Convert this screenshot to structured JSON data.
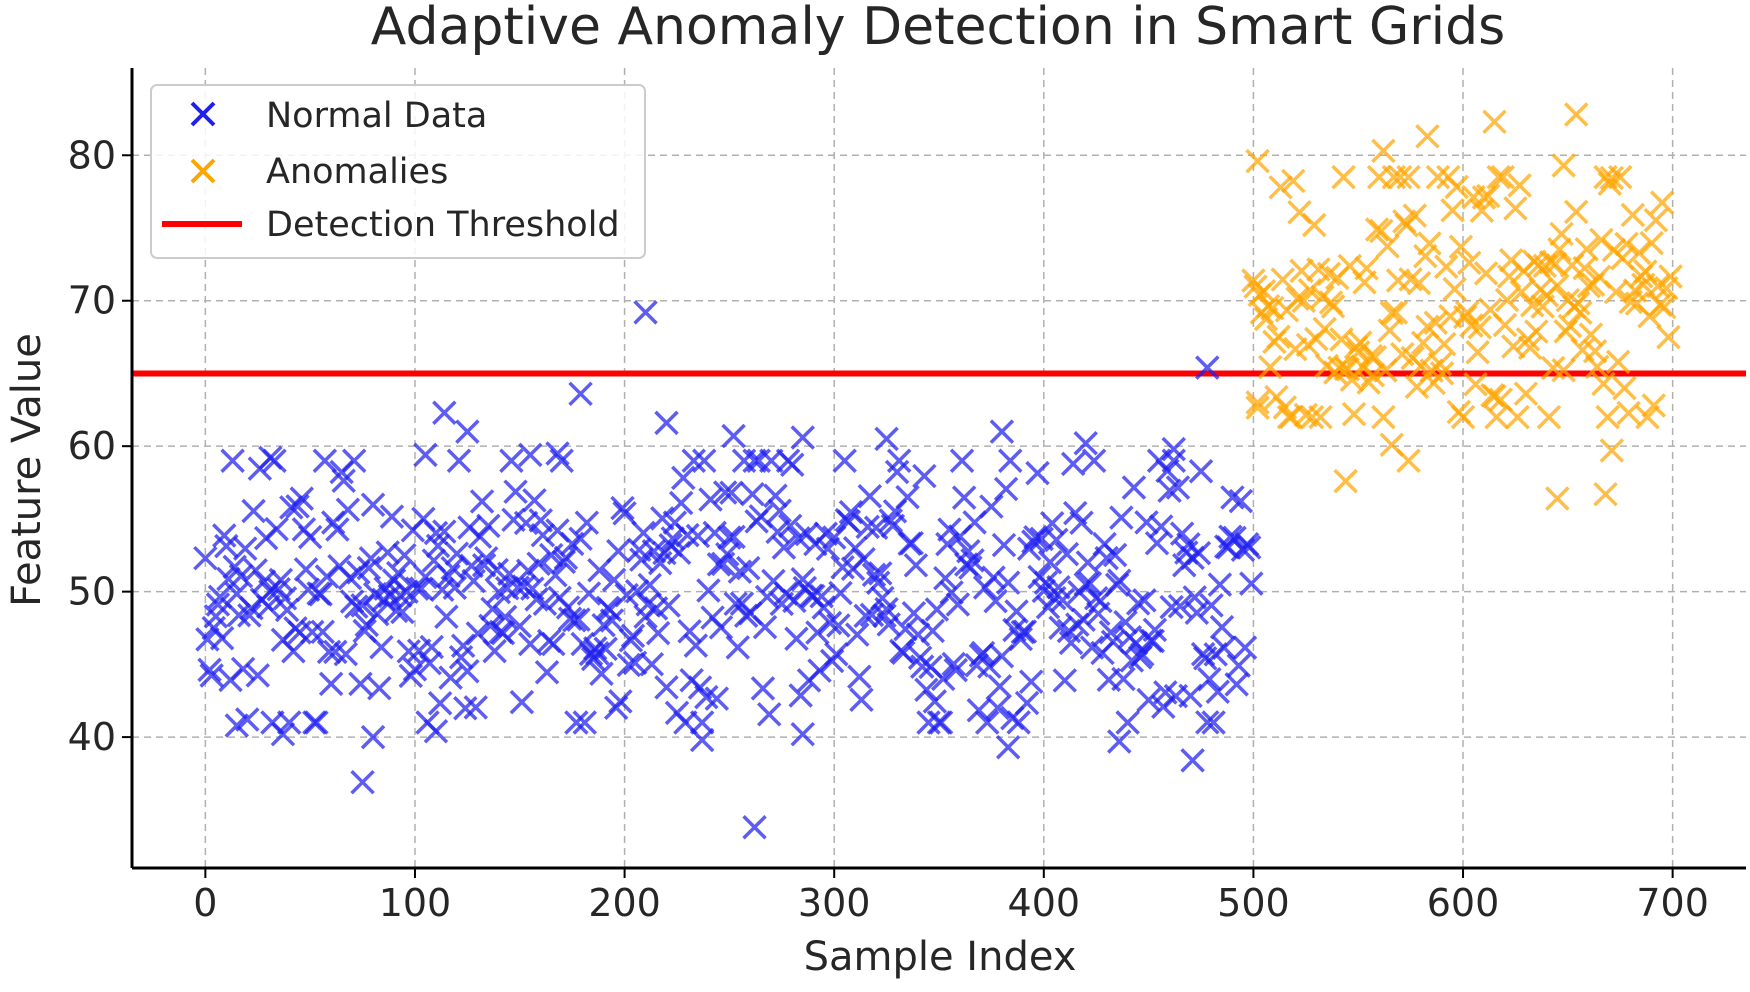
{
  "chart_data": {
    "type": "scatter",
    "title": "Adaptive Anomaly Detection in Smart Grids",
    "xlabel": "Sample Index",
    "ylabel": "Feature Value",
    "xlim": [
      -35,
      735
    ],
    "ylim": [
      31,
      86
    ],
    "grid": true,
    "legend_position": "top-left",
    "xticks": [
      0,
      100,
      200,
      300,
      400,
      500,
      600,
      700
    ],
    "yticks": [
      40,
      50,
      60,
      70,
      80
    ],
    "threshold": {
      "name": "Detection Threshold",
      "value": 65,
      "color": "#ff0000"
    },
    "series": [
      {
        "name": "Normal Data",
        "marker": "x",
        "color": "#1f1ff0",
        "x_range": [
          0,
          499
        ],
        "center": 50,
        "spread": 5,
        "outliers": [
          {
            "x": 210,
            "y": 69.2
          },
          {
            "x": 478,
            "y": 65.4
          },
          {
            "x": 262,
            "y": 33.8
          },
          {
            "x": 75,
            "y": 36.9
          },
          {
            "x": 471,
            "y": 38.4
          },
          {
            "x": 383,
            "y": 39.3
          },
          {
            "x": 179,
            "y": 63.6
          },
          {
            "x": 114,
            "y": 62.3
          },
          {
            "x": 220,
            "y": 61.6
          },
          {
            "x": 125,
            "y": 61.0
          },
          {
            "x": 380,
            "y": 61.0
          },
          {
            "x": 252,
            "y": 60.7
          },
          {
            "x": 285,
            "y": 60.6
          },
          {
            "x": 325,
            "y": 60.5
          },
          {
            "x": 420,
            "y": 60.2
          },
          {
            "x": 31,
            "y": 59.2
          },
          {
            "x": 105,
            "y": 59.4
          },
          {
            "x": 155,
            "y": 59.4
          },
          {
            "x": 168,
            "y": 59.5
          },
          {
            "x": 462,
            "y": 59.8
          },
          {
            "x": 15,
            "y": 40.8
          },
          {
            "x": 37,
            "y": 40.2
          },
          {
            "x": 80,
            "y": 40.0
          },
          {
            "x": 110,
            "y": 40.4
          },
          {
            "x": 237,
            "y": 39.8
          },
          {
            "x": 285,
            "y": 40.2
          },
          {
            "x": 436,
            "y": 39.7
          }
        ]
      },
      {
        "name": "Anomalies",
        "marker": "x",
        "color": "#ffa500",
        "x_range": [
          500,
          699
        ],
        "center": 70,
        "spread": 5,
        "outliers": [
          {
            "x": 654,
            "y": 82.8
          },
          {
            "x": 615,
            "y": 82.3
          },
          {
            "x": 583,
            "y": 81.3
          },
          {
            "x": 562,
            "y": 80.3
          },
          {
            "x": 502,
            "y": 79.6
          },
          {
            "x": 648,
            "y": 79.3
          },
          {
            "x": 544,
            "y": 57.6
          },
          {
            "x": 645,
            "y": 56.4
          },
          {
            "x": 668,
            "y": 56.7
          },
          {
            "x": 574,
            "y": 59.0
          },
          {
            "x": 671,
            "y": 59.7
          },
          {
            "x": 566,
            "y": 60.1
          },
          {
            "x": 502,
            "y": 63.0
          }
        ]
      }
    ]
  },
  "legend": {
    "items": [
      {
        "label": "Normal Data",
        "color": "#1f1ff0",
        "kind": "marker"
      },
      {
        "label": "Anomalies",
        "color": "#ffa500",
        "kind": "marker"
      },
      {
        "label": "Detection Threshold",
        "color": "#ff0000",
        "kind": "line"
      }
    ]
  }
}
